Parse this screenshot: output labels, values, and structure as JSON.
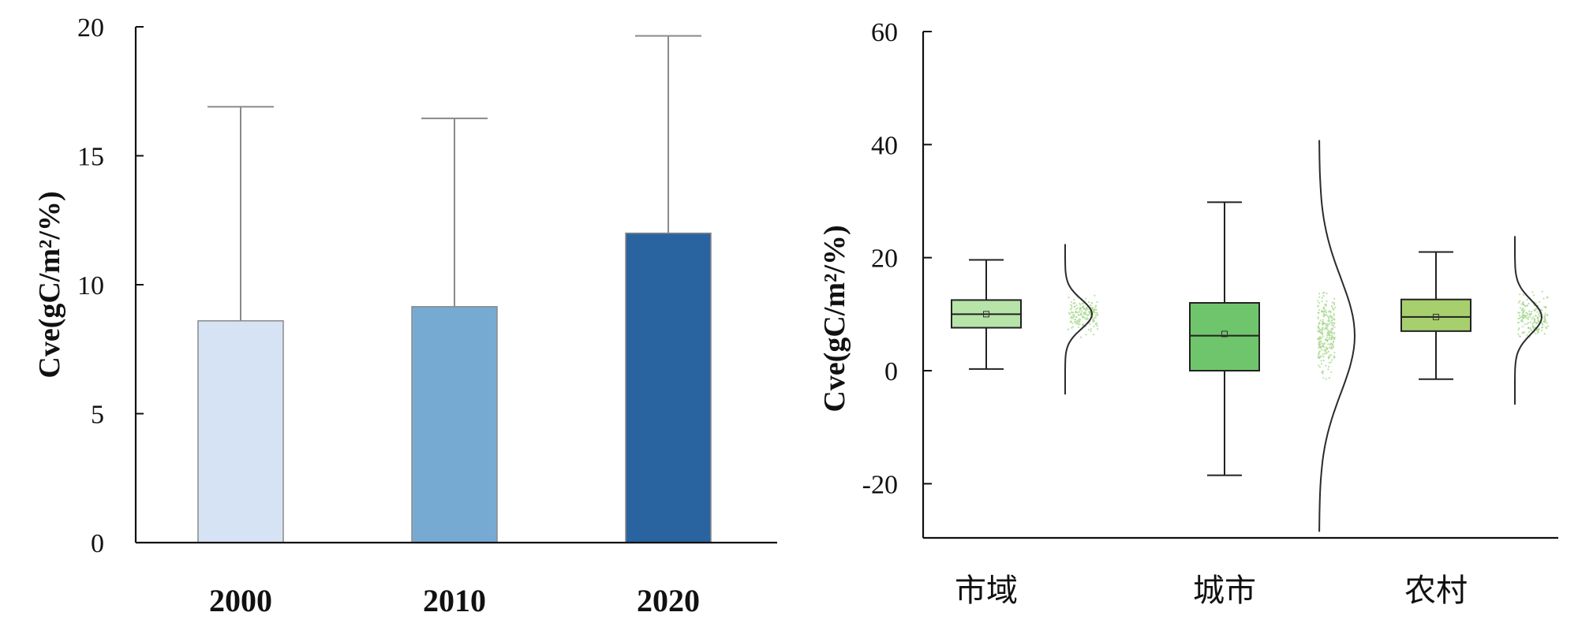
{
  "chart_data": [
    {
      "type": "bar",
      "categories": [
        "2000",
        "2010",
        "2020"
      ],
      "values": [
        8.6,
        9.15,
        12.0
      ],
      "error_upper": [
        16.9,
        16.45,
        19.65
      ],
      "ylabel": "Cve(gC/m²/%)",
      "ylim": [
        0,
        20
      ],
      "yticks": [
        "0",
        "5",
        "10",
        "15",
        "20"
      ],
      "colors": [
        "#d6e3f4",
        "#77aad2",
        "#2a64a0"
      ]
    },
    {
      "type": "box",
      "categories": [
        "市域",
        "城市",
        "农村"
      ],
      "ylabel": "Cve(gC/m²/%)",
      "ylim": [
        -30,
        60
      ],
      "yticks": [
        "-20",
        "0",
        "20",
        "40",
        "60"
      ],
      "series": [
        {
          "category": "市域",
          "whisker_low": 0.3,
          "q1": 7.6,
          "median": 10.0,
          "q3": 12.5,
          "whisker_high": 19.6,
          "mean": 10.0,
          "color": "#b7e4a9"
        },
        {
          "category": "城市",
          "whisker_low": -18.5,
          "q1": 0.0,
          "median": 6.2,
          "q3": 12.0,
          "whisker_high": 29.8,
          "mean": 6.5,
          "color": "#6fc56c"
        },
        {
          "category": "农村",
          "whisker_low": -1.5,
          "q1": 7.0,
          "median": 9.5,
          "q3": 12.6,
          "whisker_high": 21.0,
          "mean": 9.5,
          "color": "#a8cf6e"
        }
      ]
    }
  ]
}
